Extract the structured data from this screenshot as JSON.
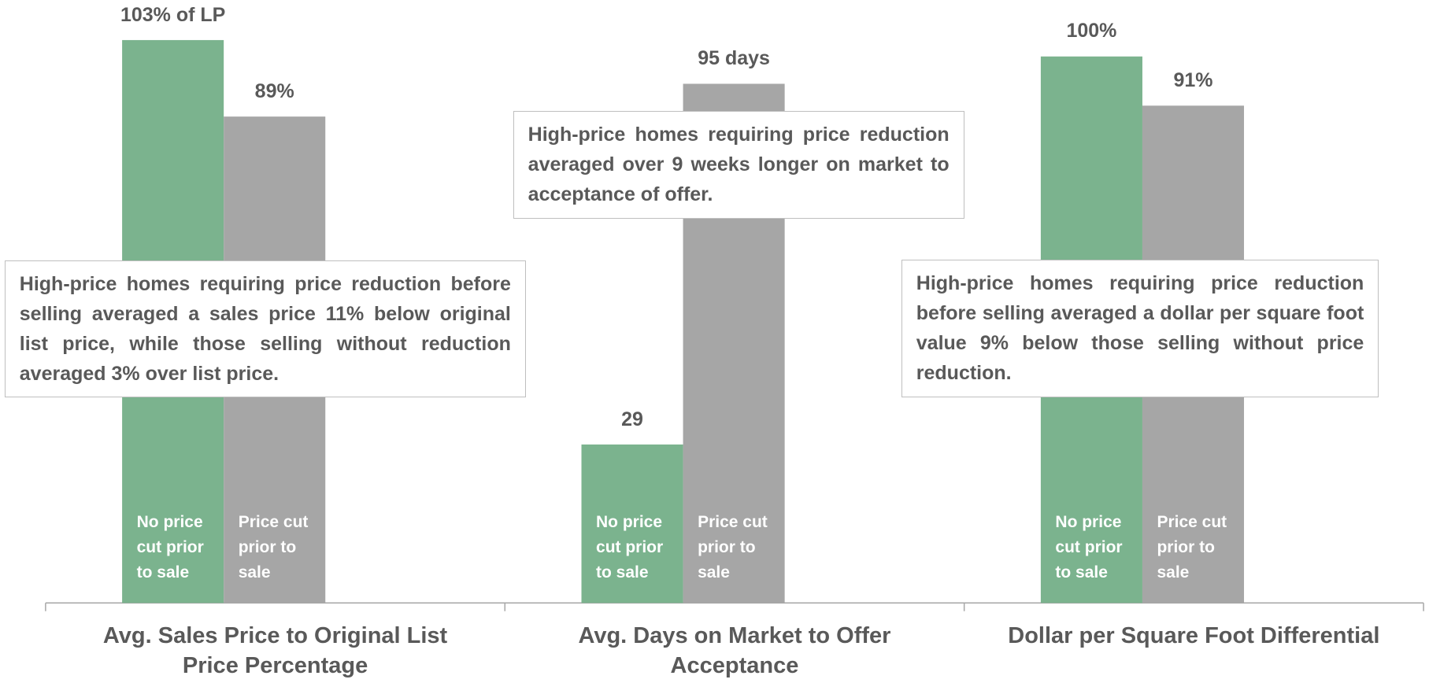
{
  "chart_data": {
    "type": "bar",
    "categories": [
      "Avg. Sales Price to Original List Price Percentage",
      "Avg. Days on Market to Offer Acceptance",
      "Dollar per Square Foot Differential"
    ],
    "series": [
      {
        "name": "No price cut prior to sale",
        "color": "#7bb38e",
        "values": [
          103,
          29,
          100
        ],
        "value_labels": [
          "103% of LP",
          "29",
          "100%"
        ]
      },
      {
        "name": "Price cut prior to sale",
        "color": "#a6a6a6",
        "values": [
          89,
          95,
          91
        ],
        "value_labels": [
          "89%",
          "95 days",
          "91%"
        ]
      }
    ],
    "ylim": [
      0,
      110
    ],
    "annotations": [
      "High-price homes requiring price reduction before selling averaged a sales price 11% below original list price, while those selling without reduction averaged 3% over list price.",
      "High-price homes requiring price reduction averaged over 9 weeks longer on market to acceptance of offer.",
      "High-price homes requiring price reduction before selling averaged a dollar per square foot value 9% below those selling without price reduction."
    ]
  }
}
